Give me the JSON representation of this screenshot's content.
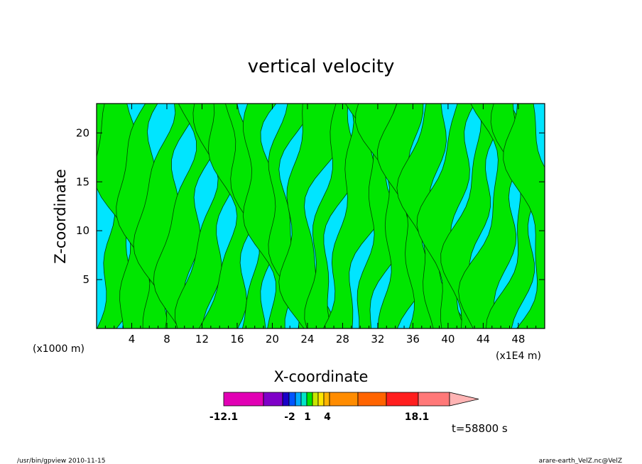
{
  "chart_data": {
    "type": "heatmap",
    "title": "vertical velocity",
    "xlabel": "X-coordinate",
    "ylabel": "Z-coordinate",
    "x_unit_left": "(x1000 m)",
    "x_unit_right": "(x1E4 m)",
    "xlim": [
      0,
      51
    ],
    "ylim": [
      0,
      23
    ],
    "x_ticks": [
      "4",
      "8",
      "12",
      "16",
      "20",
      "24",
      "28",
      "32",
      "36",
      "40",
      "44",
      "48"
    ],
    "y_ticks": [
      "5",
      "10",
      "15",
      "20"
    ],
    "fields": [
      {
        "level": "negative",
        "color": "#00e5ff"
      },
      {
        "level": "positive",
        "color": "#00e600"
      }
    ],
    "colorbar": {
      "min": -12.1,
      "max": 18.1,
      "tick_labels": [
        "-12.1",
        "-2",
        "1",
        "4",
        "18.1"
      ],
      "colors": [
        "#e100b4",
        "#7f00c8",
        "#1a00c8",
        "#0055ff",
        "#00aaff",
        "#00e5c8",
        "#00e600",
        "#c8e600",
        "#ffe600",
        "#ffb400",
        "#ff8c00",
        "#ff6400",
        "#ff1e1e",
        "#ff7878",
        "#ffb4b4"
      ]
    },
    "time_label": "t=58800 s"
  },
  "footer": {
    "left": "/usr/bin/gpview  2010-11-15",
    "right": "arare-earth_VelZ.nc@VelZ"
  }
}
